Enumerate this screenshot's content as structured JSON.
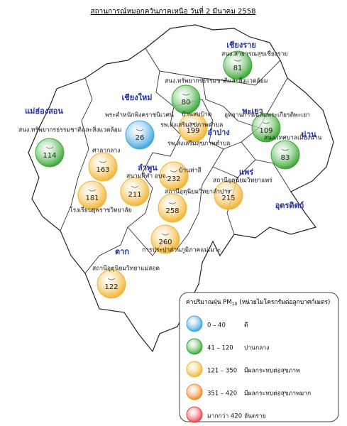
{
  "title": "สถานการณ์หมอกควันภาคเหนือ วันที่ 2 มีนาคม 2558",
  "provinces": [
    "เชียงราย",
    "เชียงใหม่",
    "แม่ฮ่องสอน",
    "พะเยา",
    "น่าน",
    "ลำปาง",
    "ลำพูน",
    "แพร่",
    "อุตรดิตถ์",
    "ตาก"
  ],
  "stations": [
    {
      "label": "สนง.ทรัพยากรธรรมชาติและสิ่งแวดล้อม",
      "value": 114,
      "color": "#3aa935"
    },
    {
      "label": "พระตำหนักพิงคราชนิเวศน์",
      "value": 26,
      "color": "#3fa6e0"
    },
    {
      "label": "สนง.สาธารณสุขเชียงราย",
      "value": 81,
      "color": "#3aa935"
    },
    {
      "label": "สนง.ทรัพยากรธรรมชาติและสิ่งแวดล้อม",
      "value": 80,
      "color": "#3aa935"
    },
    {
      "label": "อุทยานการเฉลิมพระเกียรติพะเยา",
      "value": 109,
      "color": "#3aa935"
    },
    {
      "label": "สนง.เทศบาลเมืองน่าน",
      "value": 83,
      "color": "#3aa935"
    },
    {
      "label": "บ้านสบป้าด",
      "value": 199,
      "color": "#f2b534"
    },
    {
      "label": "ศาลากลาง",
      "value": 163,
      "color": "#f2b534"
    },
    {
      "label": "รพ.ส่งเสริมสุขภาพตำบล",
      "value": 232,
      "color": "#f2b534"
    },
    {
      "label": "สนามกีฬา อบจ.",
      "value": 211,
      "color": "#f2b534"
    },
    {
      "label": "โรงเรียนยุพราชวิทยาลัย",
      "value": 181,
      "color": "#f2b534"
    },
    {
      "label": "สถานีอุตุนิยมวิทยาแพร่",
      "value": 215,
      "color": "#f2b534"
    },
    {
      "label": "สถานีอุตุนิยมวิทยาลำปาง",
      "value": 258,
      "color": "#f2b534"
    },
    {
      "label": "การประปาส่วนภูมิภาคแม่เมาะ",
      "value": 260,
      "color": "#f2b534"
    },
    {
      "label": "สถานีอุตุนิยมวิทยาแม่สอด",
      "value": 122,
      "color": "#f2b534"
    }
  ],
  "extra_labels": [
    "รพ.ส่งเสริมสุขภาพตำบล",
    "บ้านท่าสี"
  ],
  "legend": {
    "title": "ค่าปริมาณฝุ่น PM",
    "subscript": "10",
    "unit": "(หน่วยไมโครกรัมต่อลูกบาศก์เมตร)",
    "items": [
      {
        "range": "0 – 40",
        "label": "ดี",
        "color": "#3fa6e0"
      },
      {
        "range": "41 – 120",
        "label": "ปานกลาง",
        "color": "#3aa935"
      },
      {
        "range": "121 – 350",
        "label": "มีผลกระทบต่อสุขภาพ",
        "color": "#f2b534"
      },
      {
        "range": "351 – 420",
        "label": "มีผลกระทบต่อสุขภาพมาก",
        "color": "#f08a2c"
      },
      {
        "range": "มากกว่า 420",
        "label": "อันตราย",
        "color": "#e9454b"
      }
    ]
  }
}
